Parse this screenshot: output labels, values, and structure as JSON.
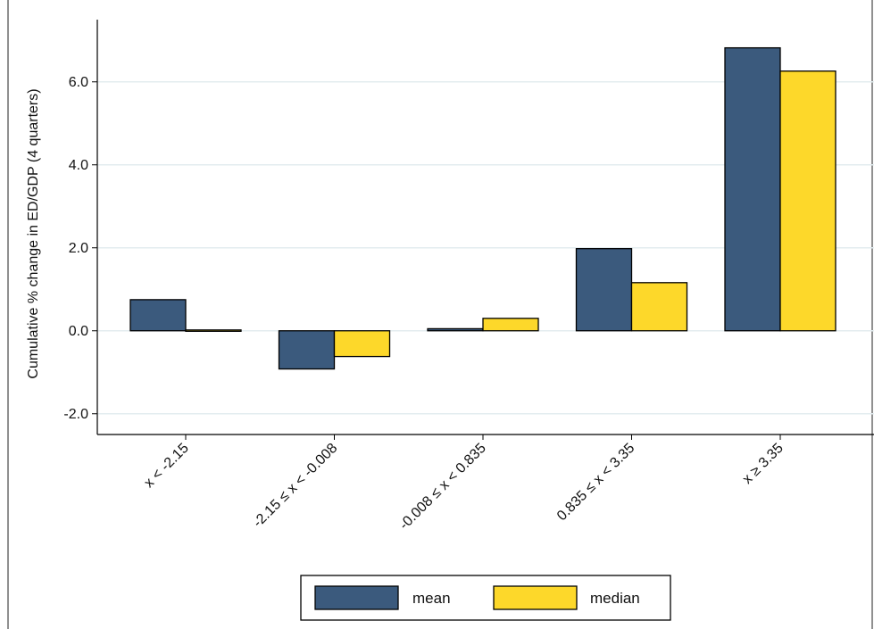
{
  "chart_data": {
    "type": "bar",
    "categories": [
      "x < -2.15",
      "-2.15 ≤ x < -0.008",
      "-0.008 ≤ x < 0.835",
      "0.835 ≤ x < 3.35",
      "x ≥ 3.35"
    ],
    "series": [
      {
        "name": "mean",
        "values": [
          0.75,
          -0.92,
          0.05,
          1.98,
          6.82
        ]
      },
      {
        "name": "median",
        "values": [
          0.02,
          -0.62,
          0.3,
          1.16,
          6.26
        ]
      }
    ],
    "ylabel": "Cumulative % change in ED/GDP (4 quarters)",
    "xlabel": "",
    "ylim": [
      -2.5,
      7.5
    ],
    "yticks": [
      -2.0,
      0.0,
      2.0,
      4.0,
      6.0
    ],
    "ytick_labels": [
      "-2.0",
      "0.0",
      "2.0",
      "4.0",
      "6.0"
    ],
    "grid": true,
    "legend_position": "bottom",
    "colors": {
      "mean": "#3b5a7d",
      "median": "#fdd82a",
      "grid": "#e3ecef",
      "edge": "#000000"
    }
  }
}
